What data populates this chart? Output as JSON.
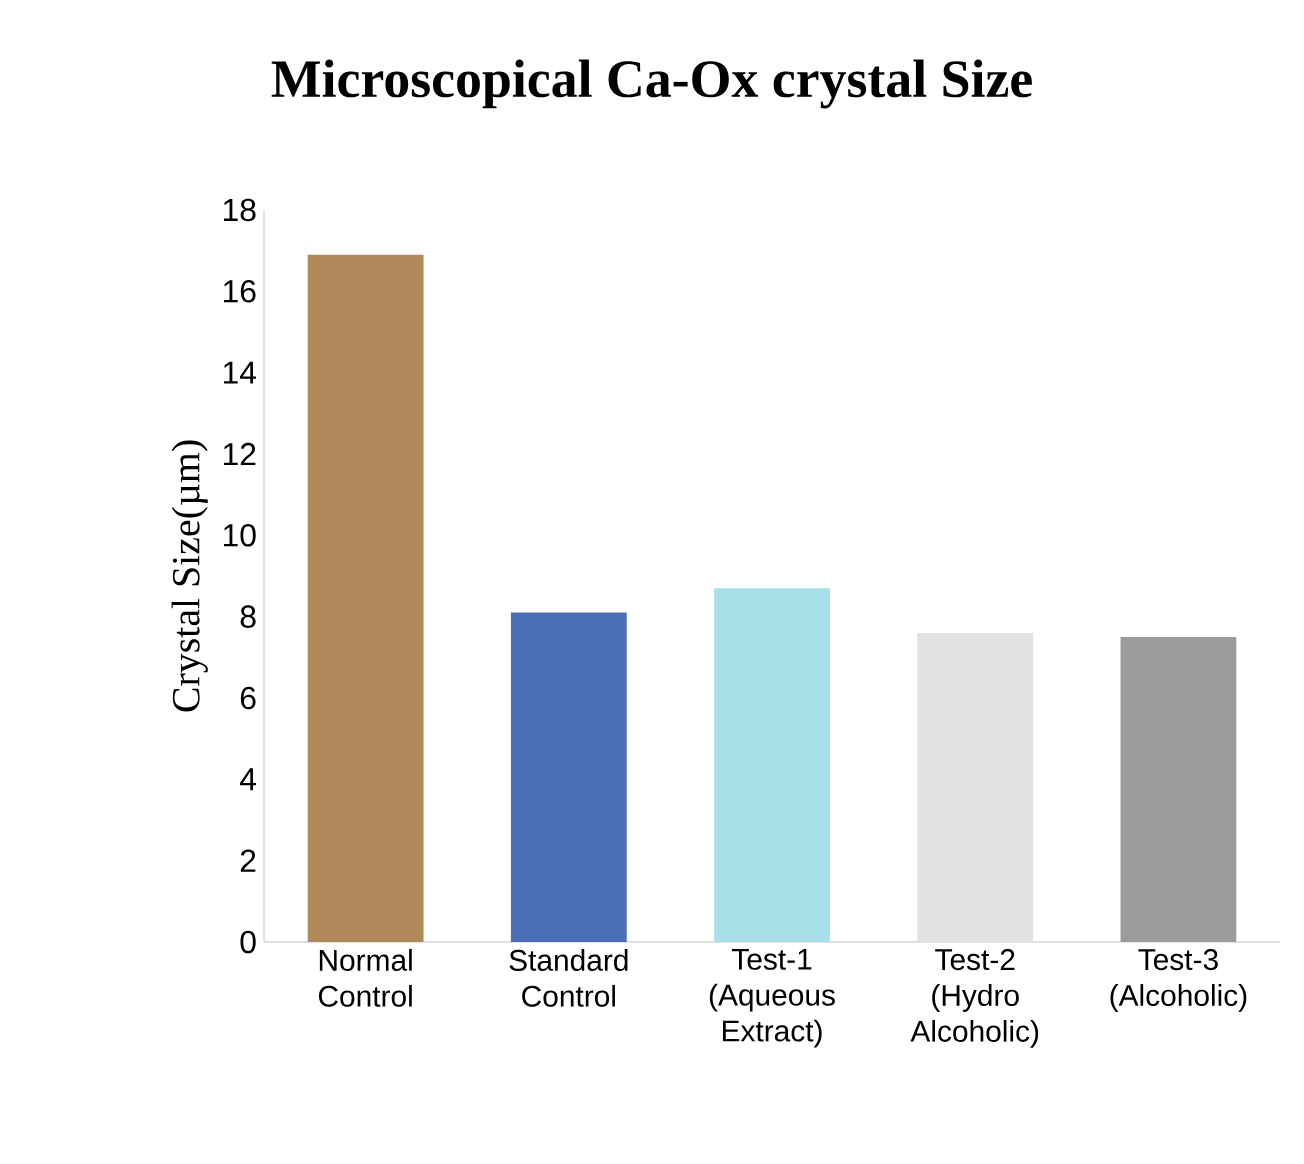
{
  "chart_data": {
    "type": "bar",
    "title": "Microscopical Ca-Ox crystal Size",
    "ylabel": "Crystal Size(µm)",
    "categories": [
      "Normal Control",
      "Standard Control",
      "Test-1 (Aqueous Extract)",
      "Test-2 (Hydro Alcoholic)",
      "Test-3 (Alcoholic)"
    ],
    "values": [
      16.9,
      8.1,
      8.7,
      7.6,
      7.5
    ],
    "colors": [
      "#b08a5a",
      "#4a6fb5",
      "#a8e0ea",
      "#e2e2e2",
      "#9c9c9c"
    ],
    "ylim": [
      0,
      18
    ],
    "yticks": [
      0,
      2,
      4,
      6,
      8,
      10,
      12,
      14,
      16,
      18
    ]
  }
}
